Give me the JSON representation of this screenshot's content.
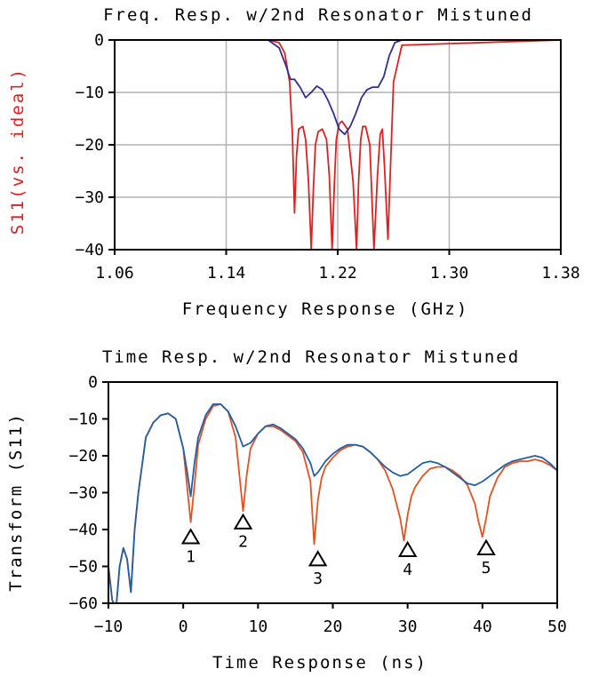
{
  "chart_data": [
    {
      "type": "line",
      "title": "Freq. Resp. w/2nd Resonator Mistuned",
      "xlabel": "Frequency Response (GHz)",
      "ylabel": "S11(vs. ideal)",
      "ylabel_color": "#e02020",
      "xlim": [
        1.06,
        1.38
      ],
      "ylim": [
        -40,
        0
      ],
      "x_ticks": [
        "1.06",
        "1.14",
        "1.22",
        "1.30",
        "1.38"
      ],
      "y_ticks": [
        "0",
        "−10",
        "−20",
        "−30",
        "−40"
      ],
      "grid": true,
      "series": [
        {
          "color": "#e02020",
          "x": [
            1.06,
            1.17,
            1.178,
            1.182,
            1.1855,
            1.1875,
            1.189,
            1.1905,
            1.192,
            1.195,
            1.197,
            1.199,
            1.201,
            1.2025,
            1.204,
            1.206,
            1.209,
            1.212,
            1.214,
            1.216,
            1.2175,
            1.219,
            1.221,
            1.223,
            1.227,
            1.231,
            1.2335,
            1.235,
            1.2365,
            1.238,
            1.24,
            1.243,
            1.246,
            1.2485,
            1.2505,
            1.252,
            1.2535,
            1.256,
            1.26,
            1.266,
            1.38
          ],
          "y": [
            0,
            0,
            -0.5,
            -2.5,
            -8,
            -18,
            -33,
            -22,
            -17,
            -16.5,
            -19,
            -27,
            -40,
            -29,
            -20,
            -17.5,
            -17,
            -19,
            -26,
            -40,
            -28,
            -19,
            -16,
            -15.5,
            -17,
            -27,
            -40,
            -27,
            -19,
            -16.5,
            -16.5,
            -20,
            -40,
            -26,
            -18,
            -17,
            -24,
            -38,
            -8,
            -1,
            0
          ]
        },
        {
          "color": "#303090",
          "x": [
            1.06,
            1.17,
            1.178,
            1.183,
            1.186,
            1.189,
            1.193,
            1.197,
            1.201,
            1.205,
            1.209,
            1.213,
            1.217,
            1.221,
            1.225,
            1.229,
            1.233,
            1.237,
            1.241,
            1.245,
            1.249,
            1.253,
            1.257,
            1.261,
            1.266,
            1.38
          ],
          "y": [
            0,
            0,
            -1.5,
            -5,
            -7.5,
            -7.5,
            -9,
            -11,
            -10,
            -8.8,
            -9.5,
            -11.5,
            -14,
            -17,
            -18,
            -16.5,
            -14,
            -11,
            -9.5,
            -9,
            -9,
            -7,
            -3,
            -0.5,
            0,
            0
          ]
        }
      ]
    },
    {
      "type": "line",
      "title": "Time Resp. w/2nd Resonator Mistuned",
      "xlabel": "Time Response (ns)",
      "ylabel": "Transform (S11)",
      "xlim": [
        -10,
        50
      ],
      "ylim": [
        -60,
        0
      ],
      "x_ticks": [
        "−10",
        "0",
        "10",
        "20",
        "30",
        "40",
        "50"
      ],
      "y_ticks": [
        "0",
        "−10",
        "−20",
        "−30",
        "−40",
        "−50",
        "−60"
      ],
      "grid": false,
      "series": [
        {
          "color": "#e8501e",
          "x": [
            -10,
            -9.5,
            -9,
            -8.5,
            -8,
            -7.5,
            -7,
            -6.5,
            -6,
            -5,
            -4,
            -3,
            -2,
            -1,
            0,
            0.5,
            1,
            1.5,
            2,
            3,
            4,
            5,
            6,
            7,
            7.5,
            8,
            8.5,
            9,
            10,
            11,
            12,
            13,
            14,
            15,
            16,
            17,
            17.5,
            18,
            18.5,
            19,
            20,
            21,
            22,
            23,
            24,
            25,
            26,
            27,
            28,
            29,
            29.5,
            30,
            30.5,
            31,
            32,
            33,
            34,
            35,
            36,
            37,
            38,
            39,
            39.5,
            40,
            40.5,
            41,
            42,
            43,
            44,
            45,
            46,
            47,
            48,
            49,
            50
          ],
          "y": [
            -50,
            -59,
            -62,
            -50,
            -45,
            -48,
            -57,
            -40,
            -30,
            -15,
            -11,
            -9,
            -8.5,
            -10,
            -18,
            -28,
            -38,
            -28,
            -17,
            -10,
            -6.5,
            -6,
            -8,
            -15,
            -25,
            -35,
            -25,
            -18,
            -14,
            -12,
            -12,
            -13,
            -14.5,
            -16,
            -19,
            -27,
            -44,
            -32,
            -26,
            -23,
            -20.5,
            -18.5,
            -17.5,
            -17,
            -17.5,
            -19,
            -21,
            -24,
            -29,
            -37,
            -43,
            -36,
            -31,
            -28.5,
            -25.5,
            -23.5,
            -23,
            -23,
            -24,
            -25.5,
            -28,
            -33,
            -38,
            -42,
            -37,
            -31,
            -26,
            -23,
            -22,
            -21.5,
            -21.5,
            -21,
            -21.5,
            -22.5,
            -24
          ]
        },
        {
          "color": "#2060a8",
          "x": [
            -10,
            -9.5,
            -9,
            -8.5,
            -8,
            -7.5,
            -7,
            -6.5,
            -6,
            -5,
            -4,
            -3,
            -2,
            -1,
            0,
            0.5,
            1,
            1.5,
            2,
            3,
            4,
            5,
            6,
            7,
            8,
            9,
            10,
            11,
            12,
            13,
            14,
            15,
            16,
            17,
            17.5,
            18,
            19,
            20,
            21,
            22,
            23,
            24,
            25,
            26,
            27,
            28,
            29,
            30,
            31,
            32,
            33,
            34,
            35,
            36,
            37,
            38,
            39,
            40,
            41,
            42,
            43,
            44,
            45,
            46,
            47,
            48,
            49,
            50
          ],
          "y": [
            -50,
            -59,
            -62,
            -50,
            -45,
            -48,
            -57,
            -40,
            -30,
            -15,
            -11,
            -9,
            -8.5,
            -10,
            -18,
            -24,
            -31,
            -22,
            -15,
            -9,
            -6,
            -6,
            -8,
            -12,
            -17.5,
            -16.5,
            -14,
            -12,
            -11.5,
            -12.5,
            -14,
            -15.5,
            -18,
            -22,
            -25.5,
            -24.5,
            -21.5,
            -19.5,
            -18,
            -17,
            -17,
            -17.5,
            -19,
            -21,
            -23,
            -24.5,
            -25.5,
            -25,
            -23.5,
            -22,
            -21.5,
            -22,
            -23,
            -24.5,
            -26,
            -27.5,
            -28,
            -27,
            -25.5,
            -24,
            -22.5,
            -21.5,
            -21,
            -20.5,
            -20,
            -20.5,
            -22,
            -24
          ]
        }
      ],
      "markers": [
        {
          "label": "1",
          "x": 1,
          "y": -42
        },
        {
          "label": "2",
          "x": 8,
          "y": -38
        },
        {
          "label": "3",
          "x": 18,
          "y": -48
        },
        {
          "label": "4",
          "x": 30,
          "y": -45.5
        },
        {
          "label": "5",
          "x": 40.5,
          "y": -45
        }
      ]
    }
  ]
}
